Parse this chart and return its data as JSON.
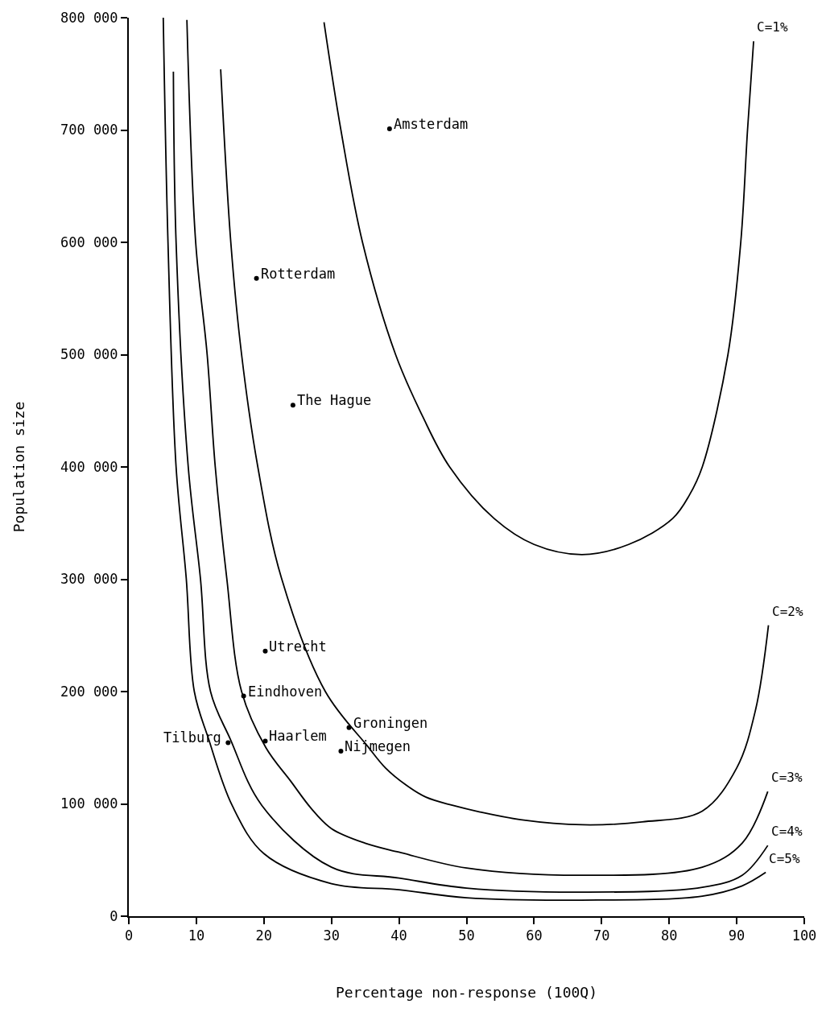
{
  "chart_data": {
    "type": "line",
    "xlabel": "Percentage non-response (100Q)",
    "ylabel": "Population size",
    "xlim": [
      0,
      100
    ],
    "ylim": [
      0,
      800000
    ],
    "xticks": [
      0,
      10,
      20,
      30,
      40,
      50,
      60,
      70,
      80,
      90,
      100
    ],
    "yticks": [
      {
        "value": 0,
        "label": "0"
      },
      {
        "value": 100000,
        "label": "100 000"
      },
      {
        "value": 200000,
        "label": "200 000"
      },
      {
        "value": 300000,
        "label": "300 000"
      },
      {
        "value": 400000,
        "label": "400 000"
      },
      {
        "value": 500000,
        "label": "500 000"
      },
      {
        "value": 600000,
        "label": "600 000"
      },
      {
        "value": 700000,
        "label": "700 000"
      },
      {
        "value": 800000,
        "label": "800 000"
      }
    ],
    "legend": false,
    "line_style": "solid",
    "series": [
      {
        "name": "C=1%",
        "color": "#000000",
        "x": [
          28.9,
          31.4,
          34.6,
          39.5,
          43.5,
          47.5,
          54.1,
          60,
          67.1,
          74,
          80.5,
          83,
          84.9,
          88.7,
          90.6,
          91.6,
          92.5
        ],
        "values": [
          796000,
          700000,
          600000,
          500000,
          445000,
          400000,
          354000,
          331000,
          322000,
          331000,
          354000,
          375000,
          400000,
          500000,
          600000,
          700000,
          779000
        ]
      },
      {
        "name": "C=2%",
        "color": "#000000",
        "x": [
          13.6,
          15.1,
          16.7,
          19.1,
          22.6,
          29.1,
          35.4,
          38,
          41,
          44,
          48,
          52,
          58,
          67.2,
          76,
          84.9,
          90.0,
          92.8,
          94.7
        ],
        "values": [
          754000,
          600000,
          500000,
          400000,
          301000,
          200000,
          151000,
          132000,
          117000,
          106000,
          98600,
          92800,
          86000,
          81400,
          84000,
          93600,
          132000,
          184000,
          259000
        ]
      },
      {
        "name": "C=3%",
        "color": "#000000",
        "x": [
          8.6,
          9.9,
          11.6,
          12.8,
          14.5,
          16.7,
          20.3,
          24,
          27,
          30,
          35,
          40,
          50,
          67,
          84.9,
          90.8,
          94.6
        ],
        "values": [
          798000,
          600000,
          500000,
          400000,
          301000,
          200000,
          150000,
          120000,
          96000,
          78000,
          65000,
          57000,
          42900,
          36400,
          43600,
          65000,
          111000
        ]
      },
      {
        "name": "C=4%",
        "color": "#000000",
        "x": [
          6.6,
          7.0,
          8.8,
          10.6,
          12.1,
          15.0,
          19.7,
          30,
          40,
          50,
          67,
          84.9,
          90.8,
          94.6
        ],
        "values": [
          752000,
          600000,
          400000,
          301000,
          200000,
          158000,
          98600,
          43600,
          34000,
          25000,
          21400,
          25700,
          36400,
          63000
        ]
      },
      {
        "name": "C=5%",
        "color": "#000000",
        "x": [
          5.1,
          5.8,
          7.0,
          8.5,
          9.7,
          11.8,
          15.3,
          20,
          30,
          40,
          50,
          67,
          84.9,
          90.8,
          94.3
        ],
        "values": [
          800000,
          600000,
          400000,
          301000,
          200000,
          158000,
          98600,
          55700,
          29000,
          23600,
          16400,
          14300,
          17900,
          27000,
          39000
        ]
      },
      {
        "type": "scatter",
        "color": "#000000",
        "marker": "circle",
        "x": [
          38.6,
          18.9,
          24.3,
          20.2,
          17.0,
          20.2,
          14.7,
          32.6,
          31.4
        ],
        "values": [
          701000,
          568000,
          455000,
          236000,
          196000,
          156000,
          154500,
          168000,
          147000
        ]
      }
    ],
    "annotations": [
      {
        "text": "Amsterdam",
        "x": 38.6,
        "y": 701000
      },
      {
        "text": "Rotterdam",
        "x": 18.9,
        "y": 568000
      },
      {
        "text": "The Hague",
        "x": 24.3,
        "y": 455000
      },
      {
        "text": "Utrecht",
        "x": 20.2,
        "y": 236000
      },
      {
        "text": "Eindhoven",
        "x": 17.0,
        "y": 196000
      },
      {
        "text": "Haarlem",
        "x": 20.2,
        "y": 156000
      },
      {
        "text": "Tilburg",
        "x": 14.7,
        "y": 154500
      },
      {
        "text": "Groningen",
        "x": 32.6,
        "y": 168000
      },
      {
        "text": "Nijmegen",
        "x": 31.4,
        "y": 147000
      }
    ]
  }
}
